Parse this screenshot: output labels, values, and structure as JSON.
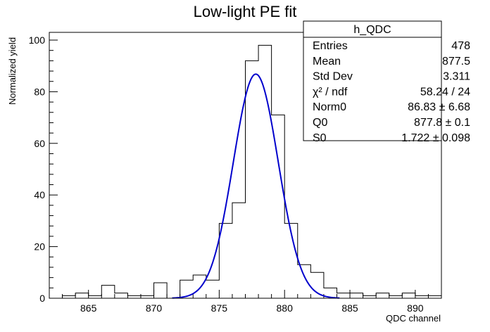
{
  "chart_data": {
    "type": "bar",
    "title": "Low-light PE fit",
    "xlabel": "QDC channel",
    "ylabel": "Normalized yield",
    "xlim": [
      862,
      892
    ],
    "ylim": [
      0,
      103
    ],
    "x_ticks": [
      865,
      870,
      875,
      880,
      885,
      890
    ],
    "y_ticks": [
      0,
      20,
      40,
      60,
      80,
      100
    ],
    "bin_width": 1,
    "histogram": {
      "name": "h_QDC",
      "bin_lefts": [
        862,
        863,
        864,
        865,
        866,
        867,
        868,
        869,
        870,
        871,
        872,
        873,
        874,
        875,
        876,
        877,
        878,
        879,
        880,
        881,
        882,
        883,
        884,
        885,
        886,
        887,
        888,
        889,
        890,
        891
      ],
      "values": [
        0,
        1,
        2,
        1,
        5,
        2,
        1,
        1,
        6,
        0,
        7,
        9,
        7,
        29,
        37,
        92,
        98,
        71,
        29,
        13,
        10,
        4,
        2,
        2,
        1,
        2,
        1,
        2,
        1,
        1
      ]
    },
    "fit": {
      "function": "gaussian",
      "Norm0": 86.83,
      "Q0": 877.8,
      "S0": 1.722
    },
    "stats_box": {
      "title": "h_QDC",
      "rows": [
        {
          "label": "Entries",
          "value": "478"
        },
        {
          "label": "Mean",
          "value": "877.5"
        },
        {
          "label": "Std Dev",
          "value": "3.311"
        },
        {
          "label": "χ² / ndf",
          "value": "58.24 / 24"
        },
        {
          "label": "Norm0",
          "value": "86.83 ± 6.68"
        },
        {
          "label": "Q0",
          "value": "877.8 ± 0.1"
        },
        {
          "label": "S0",
          "value": "1.722 ± 0.098"
        }
      ]
    },
    "colors": {
      "histogram": "#000000",
      "fit": "#0000cc",
      "frame": "#000000"
    },
    "grid": false
  }
}
